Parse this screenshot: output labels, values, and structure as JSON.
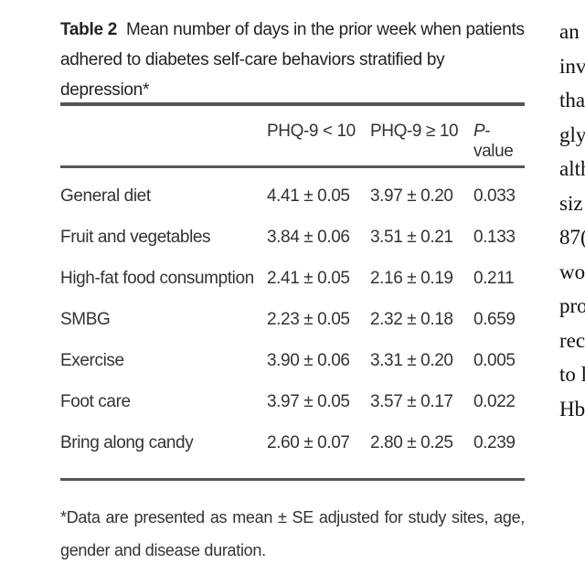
{
  "table": {
    "label": "Table 2",
    "caption": "Mean number of days in the prior week when patients adhered to diabetes self-care behaviors stratified by depression*",
    "headers": [
      "PHQ-9 < 10",
      "PHQ-9 ≥ 10",
      "P",
      "-value"
    ],
    "rows": [
      {
        "name": "General diet",
        "a": "4.41 ± 0.05",
        "b": "3.97 ± 0.20",
        "p": "0.033"
      },
      {
        "name": "Fruit and vegetables",
        "a": "3.84 ± 0.06",
        "b": "3.51 ± 0.21",
        "p": "0.133"
      },
      {
        "name": "High-fat food consumption",
        "a": "2.41 ± 0.05",
        "b": "2.16 ± 0.19",
        "p": "0.211"
      },
      {
        "name": "SMBG",
        "a": "2.23 ± 0.05",
        "b": "2.32 ± 0.18",
        "p": "0.659"
      },
      {
        "name": "Exercise",
        "a": "3.90 ± 0.06",
        "b": "3.31 ± 0.20",
        "p": "0.005"
      },
      {
        "name": "Foot care",
        "a": "3.97 ± 0.05",
        "b": "3.57 ± 0.17",
        "p": "0.022"
      },
      {
        "name": "Bring along candy",
        "a": "2.60 ± 0.07",
        "b": "2.80 ± 0.25",
        "p": "0.239"
      }
    ],
    "footnote": "*Data are presented as mean ± SE adjusted for study sites, age, gender and disease duration."
  },
  "adjacent_text": [
    "an",
    "inv",
    "tha",
    "gly",
    "alth",
    "siz",
    "87(",
    "wo",
    "pro",
    "rec",
    "to l",
    "Hb"
  ]
}
